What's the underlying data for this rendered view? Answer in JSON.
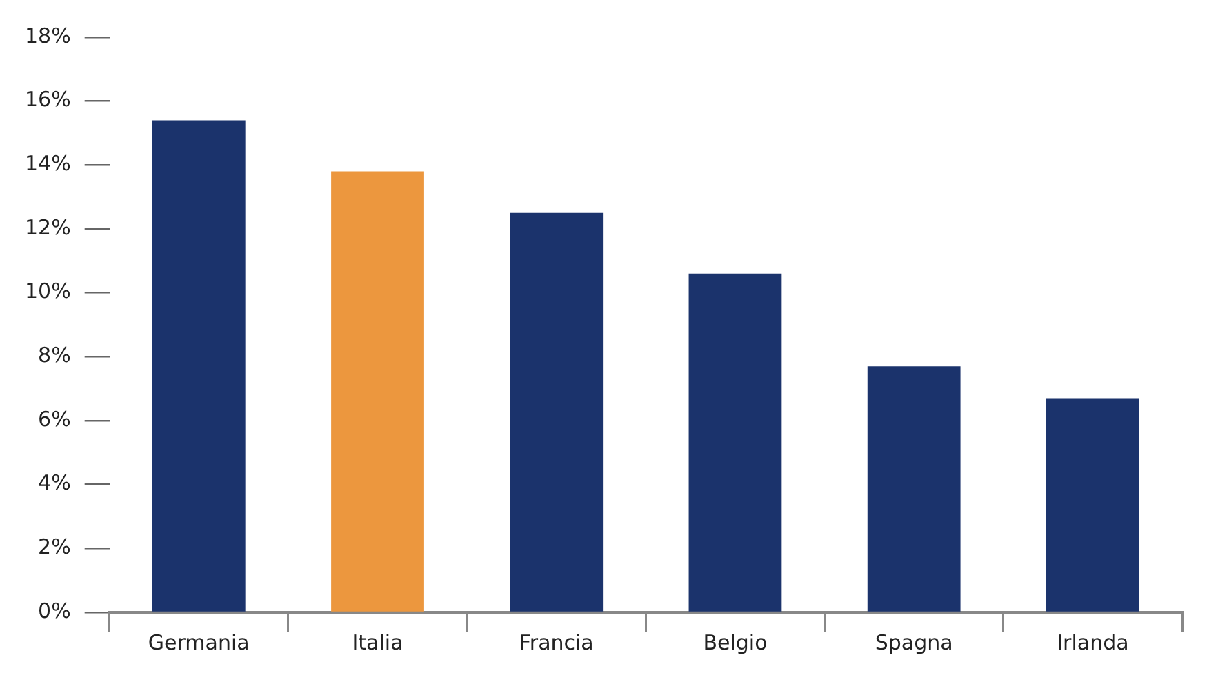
{
  "chart_data": {
    "type": "bar",
    "categories": [
      "Germania",
      "Italia",
      "Francia",
      "Belgio",
      "Spagna",
      "Irlanda"
    ],
    "values": [
      15.4,
      13.8,
      12.5,
      10.6,
      7.7,
      6.7
    ],
    "colors": [
      "#1b336c",
      "#ec973e",
      "#1b336c",
      "#1b336c",
      "#1b336c",
      "#1b336c"
    ],
    "ylim": [
      0,
      18
    ],
    "yticks": [
      {
        "value": 0,
        "label": "0%"
      },
      {
        "value": 2,
        "label": "2%"
      },
      {
        "value": 4,
        "label": "4%"
      },
      {
        "value": 6,
        "label": "6%"
      },
      {
        "value": 8,
        "label": "8%"
      },
      {
        "value": 10,
        "label": "10%"
      },
      {
        "value": 12,
        "label": "12%"
      },
      {
        "value": 14,
        "label": "14%"
      },
      {
        "value": 16,
        "label": "16%"
      },
      {
        "value": 18,
        "label": "18%"
      }
    ],
    "grid": false,
    "legend": false
  }
}
